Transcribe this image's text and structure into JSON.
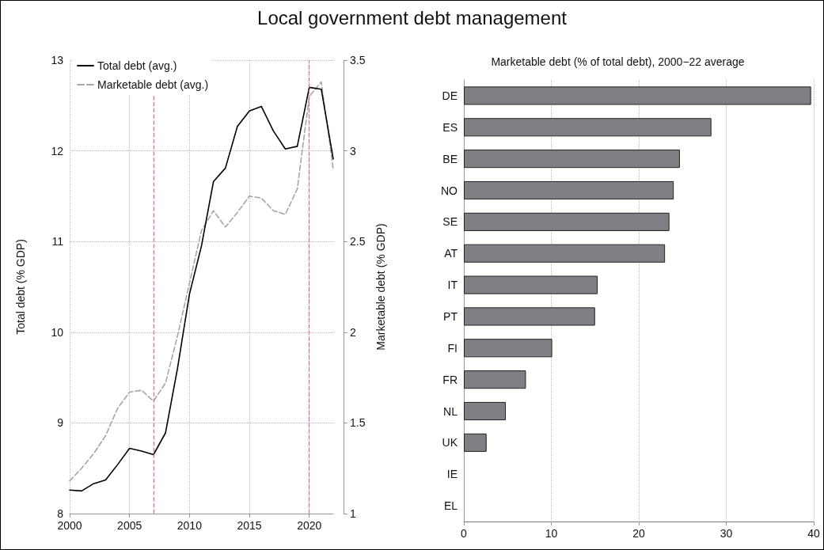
{
  "chart_data": [
    {
      "type": "line",
      "title": "Local government debt management",
      "ylabel": "Total debt (% GDP)",
      "y2label": "Marketable debt (% GDP)",
      "x": [
        2000,
        2001,
        2002,
        2003,
        2004,
        2005,
        2006,
        2007,
        2008,
        2009,
        2010,
        2011,
        2012,
        2013,
        2014,
        2015,
        2016,
        2017,
        2018,
        2019,
        2020,
        2021,
        2022
      ],
      "series": [
        {
          "name": "Total debt (avg.)",
          "color": "#000000",
          "line_style": "solid",
          "values": [
            8.26,
            8.25,
            8.33,
            8.37,
            8.54,
            8.72,
            8.69,
            8.65,
            8.89,
            9.6,
            10.42,
            10.95,
            11.66,
            11.81,
            12.27,
            12.44,
            12.49,
            12.22,
            12.02,
            12.05,
            12.7,
            12.68,
            11.91
          ]
        },
        {
          "name": "Marketable debt (avg.)",
          "color": "#a6a6a6",
          "line_style": "dashed",
          "axis": "y2",
          "values": [
            1.18,
            1.25,
            1.33,
            1.43,
            1.58,
            1.67,
            1.68,
            1.62,
            1.72,
            1.98,
            2.27,
            2.56,
            2.67,
            2.58,
            2.66,
            2.75,
            2.74,
            2.67,
            2.65,
            2.79,
            3.3,
            3.38,
            2.9
          ]
        }
      ],
      "xlim": [
        2000,
        2022
      ],
      "xticks": [
        2000,
        2005,
        2010,
        2015,
        2020
      ],
      "ylim": [
        8,
        13
      ],
      "yticks": [
        8,
        9,
        10,
        11,
        12,
        13
      ],
      "y2lim": [
        1,
        3.5
      ],
      "y2ticks": [
        1,
        1.5,
        2,
        2.5,
        3,
        3.5
      ],
      "ref_lines": [
        {
          "axis": "x",
          "value": 2007,
          "color": "#d46fa6",
          "line_style": "dashed"
        },
        {
          "axis": "x",
          "value": 2020,
          "color": "#d46fa6",
          "line_style": "dashed"
        }
      ],
      "grid": true,
      "legend": "top left",
      "marker": "none"
    },
    {
      "type": "bar",
      "orientation": "horizontal",
      "title": "Marketable debt (% of total debt), 2000−22 average",
      "categories": [
        "DE",
        "ES",
        "BE",
        "NO",
        "SE",
        "AT",
        "IT",
        "PT",
        "FI",
        "FR",
        "NL",
        "UK",
        "IE",
        "EL"
      ],
      "values": [
        39.7,
        28.3,
        24.7,
        24.0,
        23.5,
        23.0,
        15.3,
        15.0,
        10.1,
        7.1,
        4.8,
        2.6,
        0,
        0
      ],
      "color": "#808084",
      "xlim": [
        0,
        40
      ],
      "xticks": [
        0,
        10,
        20,
        30,
        40
      ],
      "grid": "x"
    }
  ]
}
